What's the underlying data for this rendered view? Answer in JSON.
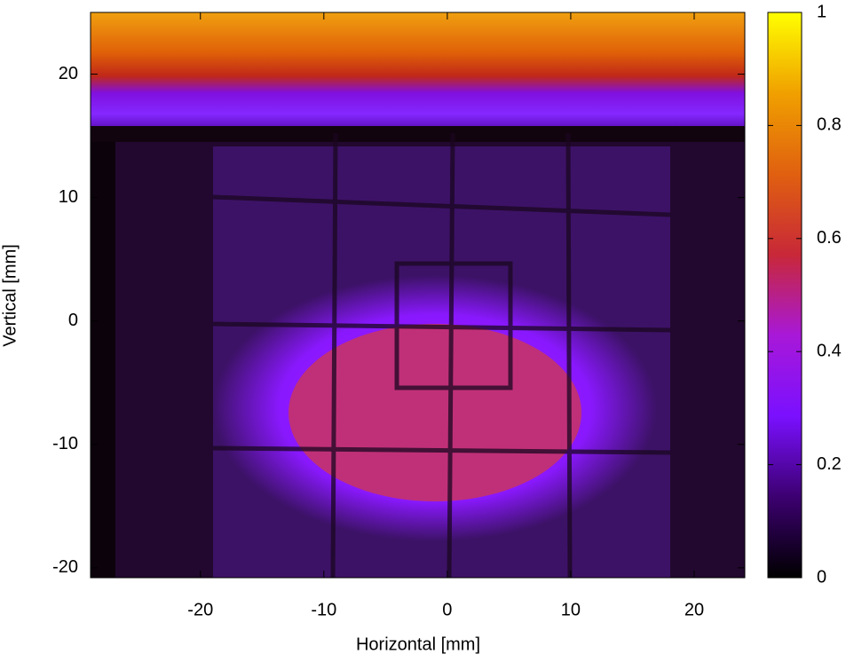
{
  "chart_data": {
    "type": "heatmap",
    "xlabel": "Horizontal [mm]",
    "ylabel": "Vertical [mm]",
    "xlim": [
      -28.9,
      24.1
    ],
    "xticks": [
      -20,
      -10,
      0,
      10,
      20
    ],
    "ylim": [
      -20.8,
      25
    ],
    "yticks": [
      -20,
      -10,
      0,
      10,
      20
    ],
    "clim": [
      0,
      1
    ],
    "cticks": [
      0,
      0.2,
      0.4,
      0.6,
      0.8,
      1
    ],
    "colormap": [
      "#000000",
      "#3c0070",
      "#7a10ff",
      "#a818d8",
      "#c82838",
      "#e06010",
      "#f0a000",
      "#ffff00"
    ]
  }
}
